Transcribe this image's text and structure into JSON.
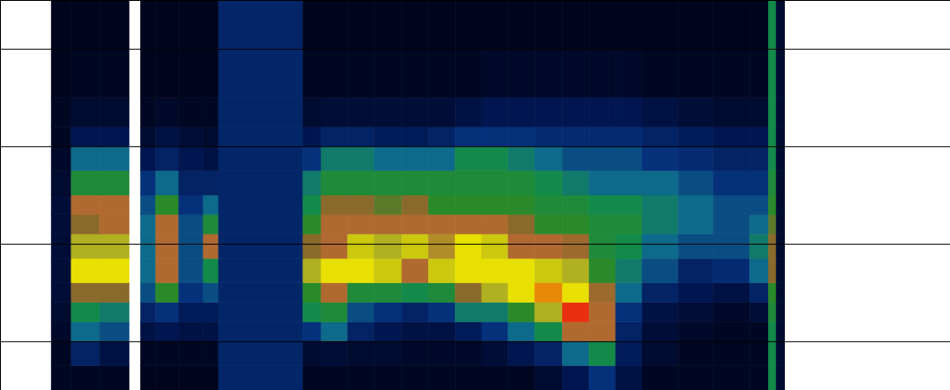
{
  "chart_data": {
    "type": "heatmap",
    "xlim": [
      0,
      100
    ],
    "ylim": [
      -0.5,
      3.5
    ],
    "xticks": [],
    "yticks": [
      0,
      1,
      2,
      3
    ],
    "grid": true,
    "tick_labels": false,
    "x_edges": [
      5.4,
      7.5,
      10.5,
      13.6,
      14.8,
      16.4,
      18.8,
      21.4,
      23,
      31.9,
      33.8,
      36.6,
      39.4,
      42.3,
      45.1,
      47.9,
      50.7,
      53.5,
      56.3,
      59.2,
      62,
      64.8,
      67.6,
      71.4,
      75.1,
      78.9,
      80.9,
      81.7,
      82.6
    ],
    "y_edges": [
      -0.5,
      -0.25,
      0,
      0.2,
      0.4,
      0.6,
      0.85,
      1.1,
      1.3,
      1.5,
      1.75,
      2.0,
      2.2,
      2.5,
      3.0,
      3.5
    ],
    "color_range": [
      0,
      10
    ],
    "colorscale": [
      "#00000f",
      "#001650",
      "#05307a",
      "#0e6a8a",
      "#138a4a",
      "#2a8a2a",
      "#8a6a2a",
      "#b06a30",
      "#b0b020",
      "#e8e000",
      "#e83010"
    ],
    "cells": [
      [
        0.3,
        0.3,
        0.3,
        null,
        0.2,
        0.2,
        0.2,
        0.2,
        1.6,
        0.3,
        0.3,
        0.3,
        0.3,
        0.3,
        0.3,
        0.3,
        0.3,
        0.3,
        0.5,
        1,
        2,
        0.8,
        0.3,
        0.3,
        0.3,
        0.3,
        4,
        0.5
      ],
      [
        0.3,
        1.5,
        0.8,
        null,
        0.3,
        0.3,
        0.3,
        0.3,
        1.6,
        0.5,
        0.6,
        0.5,
        0.5,
        0.4,
        0.4,
        0.4,
        0.6,
        1,
        1.5,
        3,
        4,
        1.2,
        0.5,
        0.3,
        0.3,
        0.3,
        4,
        0.5
      ],
      [
        0.4,
        3,
        2.5,
        null,
        0.8,
        1,
        0.8,
        0.8,
        1.6,
        2,
        3,
        1.5,
        1,
        0.8,
        0.8,
        1.2,
        2,
        3,
        4,
        7,
        7,
        1.5,
        0.6,
        0.4,
        0.3,
        0.3,
        4,
        0.5
      ],
      [
        0.5,
        4,
        3.5,
        null,
        1.5,
        2,
        1.2,
        1.2,
        1.6,
        4,
        4.5,
        2.5,
        2,
        1.5,
        2,
        3.5,
        3.5,
        5,
        8,
        10,
        7,
        2,
        0.8,
        0.6,
        0.4,
        0.6,
        4.5,
        0.5
      ],
      [
        0.6,
        6,
        6,
        null,
        2.5,
        5,
        2,
        2.5,
        1.6,
        5,
        7,
        4.5,
        4.5,
        4,
        4.5,
        6,
        8,
        9,
        9.5,
        9,
        6.5,
        3,
        1.5,
        1,
        0.8,
        1.5,
        5,
        0.5
      ],
      [
        0.6,
        9,
        9,
        null,
        3,
        7,
        2.5,
        4,
        1.6,
        8,
        9,
        9,
        8.5,
        7,
        8.5,
        9,
        9,
        9,
        8.5,
        8,
        5,
        3.5,
        2.5,
        1.5,
        1.8,
        3,
        6,
        0.5
      ],
      [
        0.6,
        8,
        8,
        null,
        3,
        7,
        2.5,
        7,
        1.6,
        6,
        7,
        8.5,
        8,
        8.5,
        7.5,
        9,
        8.5,
        7,
        7,
        6.5,
        4.5,
        4,
        3,
        2.5,
        2.5,
        3.5,
        6,
        0.5
      ],
      [
        0.6,
        6,
        7,
        null,
        3,
        7,
        2.5,
        4.5,
        1.6,
        5,
        7,
        7,
        7,
        7,
        7,
        7,
        7,
        6,
        5,
        5,
        4.5,
        4.5,
        3.5,
        3,
        2.5,
        3,
        5.5,
        0.5
      ],
      [
        0.6,
        7,
        7,
        null,
        2.5,
        5,
        2,
        3,
        1.6,
        4,
        6,
        6,
        5.5,
        6,
        5,
        5,
        5,
        5,
        4.5,
        4.5,
        4,
        4,
        3.5,
        3,
        2.5,
        2.5,
        5,
        0.5
      ],
      [
        0.5,
        4.5,
        4.5,
        null,
        2,
        3,
        1.5,
        1.5,
        1.6,
        3.5,
        4.5,
        4.5,
        4.5,
        4.5,
        4.5,
        4.5,
        4.5,
        4.5,
        4,
        3.5,
        3,
        3,
        3,
        2.5,
        2,
        2,
        4.5,
        0.5
      ],
      [
        0.4,
        3,
        3,
        null,
        1,
        1.5,
        1,
        0.8,
        1.6,
        2,
        3.5,
        3.5,
        3,
        3,
        3,
        4,
        4,
        3.5,
        3,
        2.5,
        2.5,
        2.5,
        2,
        1.8,
        1.5,
        1.5,
        4,
        0.5
      ],
      [
        0.3,
        1,
        1,
        null,
        0.5,
        0.8,
        0.6,
        0.5,
        1.6,
        1,
        1.5,
        1.5,
        1.2,
        1.2,
        1.5,
        2,
        2,
        2,
        1.8,
        1.8,
        1.8,
        1.8,
        1.5,
        1.2,
        1,
        1,
        4,
        0.5
      ],
      [
        0.3,
        0.5,
        0.5,
        null,
        0.3,
        0.4,
        0.3,
        0.3,
        1.6,
        0.5,
        0.6,
        0.6,
        0.6,
        0.6,
        0.6,
        0.8,
        1,
        1,
        1,
        1,
        1,
        1,
        0.8,
        0.6,
        0.5,
        0.5,
        4,
        0.5
      ],
      [
        0.2,
        0.3,
        0.3,
        null,
        0.2,
        0.2,
        0.2,
        0.2,
        1.6,
        0.3,
        0.3,
        0.3,
        0.3,
        0.3,
        0.3,
        0.3,
        0.4,
        0.4,
        0.4,
        0.4,
        0.4,
        0.4,
        0.3,
        0.3,
        0.3,
        0.3,
        4,
        0.5
      ],
      [
        0.2,
        0.2,
        0.2,
        null,
        0.2,
        0.2,
        0.2,
        0.2,
        1.6,
        0.2,
        0.2,
        0.2,
        0.2,
        0.2,
        0.2,
        0.2,
        0.2,
        0.2,
        0.2,
        0.2,
        0.2,
        0.2,
        0.2,
        0.2,
        0.2,
        0.2,
        4,
        0.5
      ]
    ]
  }
}
